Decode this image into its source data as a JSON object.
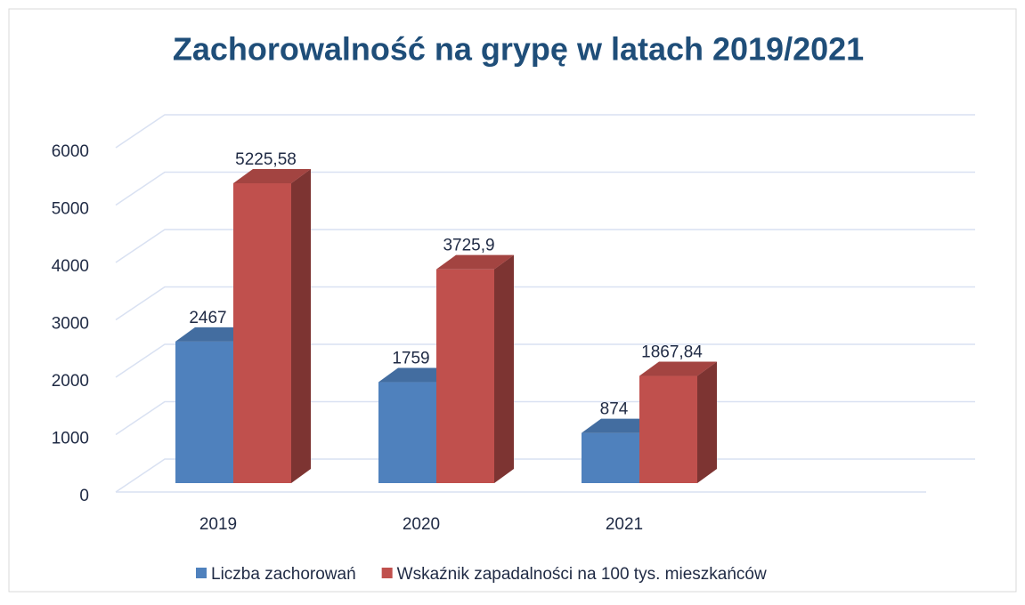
{
  "chart_data": {
    "type": "bar",
    "title": "Zachorowalność na grypę w latach 2019/2021",
    "categories": [
      "2019",
      "2020",
      "2021"
    ],
    "series": [
      {
        "name": "Liczba zachorowań",
        "color": "#4f81bd",
        "values": [
          2467,
          1759,
          874
        ]
      },
      {
        "name": "Wskaźnik zapadalności na 100 tys. mieszkańców",
        "color": "#c0504d",
        "values": [
          5225.58,
          3725.9,
          1867.84
        ],
        "value_labels": [
          "5225,58",
          "3725,9",
          "1867,84"
        ]
      }
    ],
    "ylim": [
      0,
      6000
    ],
    "yticks": [
      0,
      1000,
      2000,
      3000,
      4000,
      5000,
      6000
    ],
    "grid": true,
    "legend": "bottom"
  }
}
